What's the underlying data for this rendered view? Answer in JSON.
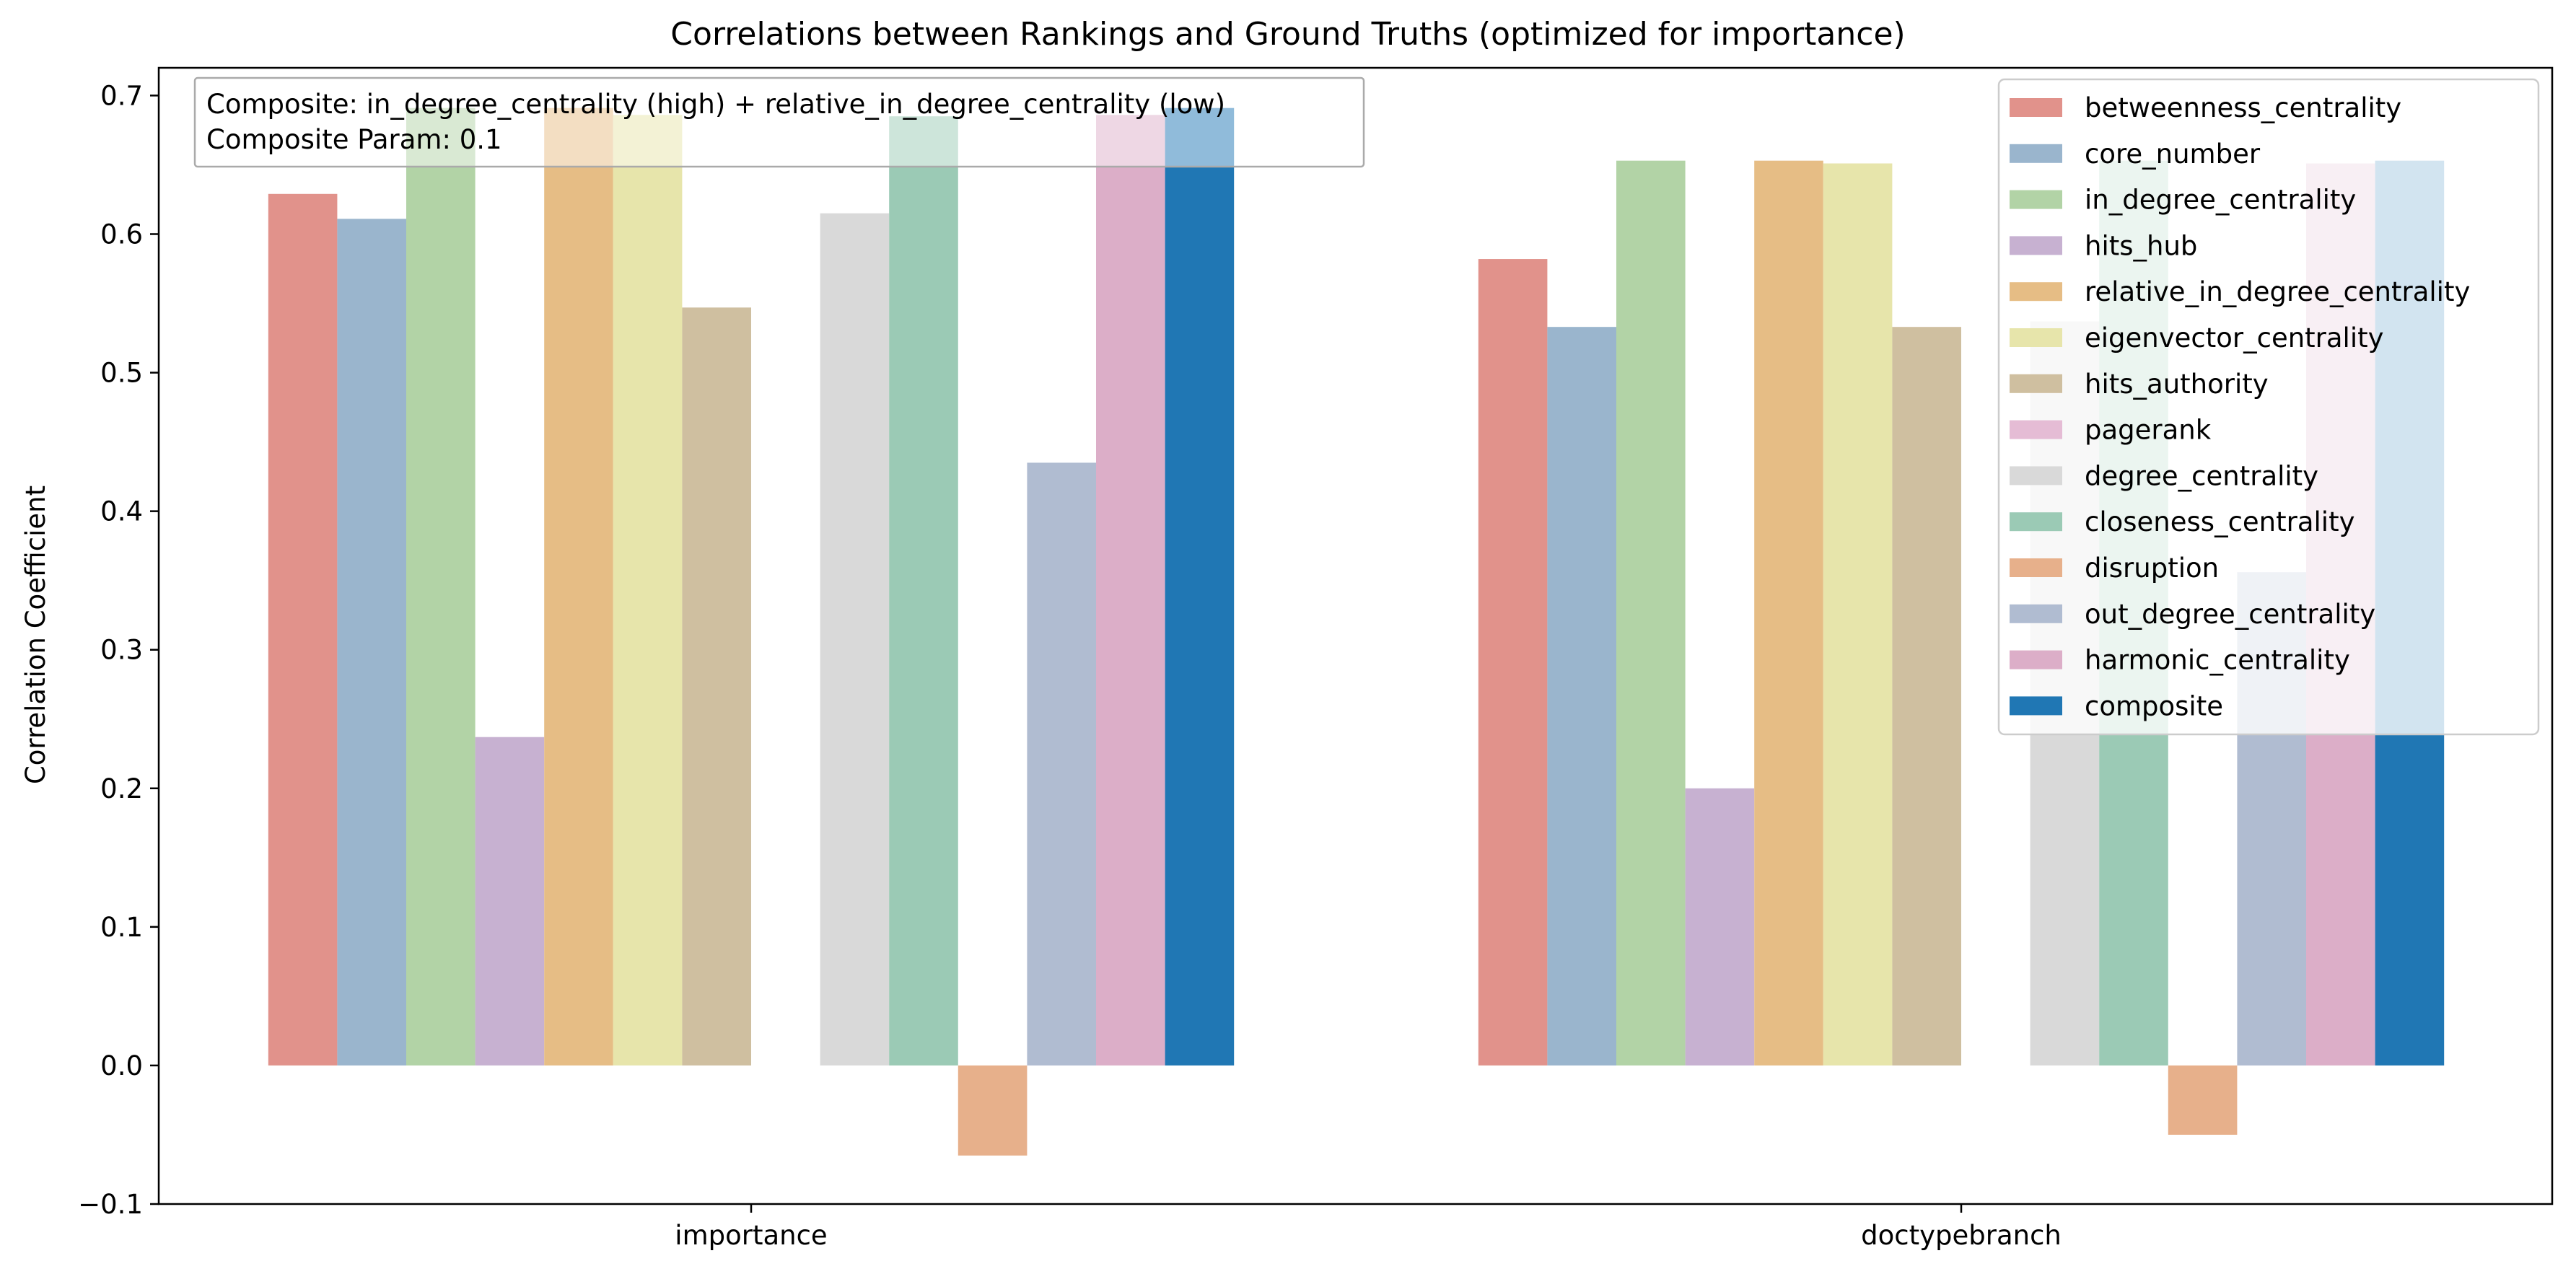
{
  "chart_data": {
    "type": "bar",
    "title": "Correlations between Rankings and Ground Truths (optimized for importance)",
    "xlabel": "",
    "ylabel": "Correlation Coefficient",
    "ylim": [
      -0.1,
      0.72
    ],
    "yticks": [
      "-0.1",
      "0.0",
      "0.1",
      "0.2",
      "0.3",
      "0.4",
      "0.5",
      "0.6",
      "0.7"
    ],
    "grid": false,
    "legend_position": "top-right",
    "categories": [
      "importance",
      "doctypebranch"
    ],
    "series": [
      {
        "name": "betweenness_centrality",
        "color": "#e1928b",
        "values": [
          0.629,
          0.582
        ]
      },
      {
        "name": "core_number",
        "color": "#9ab5cd",
        "values": [
          0.611,
          0.533
        ]
      },
      {
        "name": "in_degree_centrality",
        "color": "#b2d3a6",
        "values": [
          0.691,
          0.653
        ]
      },
      {
        "name": "hits_hub",
        "color": "#c7b1d1",
        "values": [
          0.237,
          0.2
        ]
      },
      {
        "name": "relative_in_degree_centrality",
        "color": "#e6bd85",
        "values": [
          0.691,
          0.653
        ]
      },
      {
        "name": "eigenvector_centrality",
        "color": "#e7e5ab",
        "values": [
          0.686,
          0.651
        ]
      },
      {
        "name": "hits_authority",
        "color": "#cfbfa0",
        "values": [
          0.547,
          0.533
        ]
      },
      {
        "name": "pagerank",
        "color": "#e5bcd5",
        "values": [
          null,
          null
        ]
      },
      {
        "name": "degree_centrality",
        "color": "#d9d9d9",
        "values": [
          0.615,
          0.537
        ]
      },
      {
        "name": "closeness_centrality",
        "color": "#9bcab5",
        "values": [
          0.685,
          0.653
        ]
      },
      {
        "name": "disruption",
        "color": "#e7b08b",
        "values": [
          -0.065,
          -0.05
        ]
      },
      {
        "name": "out_degree_centrality",
        "color": "#b0bcd1",
        "values": [
          0.435,
          0.356
        ]
      },
      {
        "name": "harmonic_centrality",
        "color": "#dcaec8",
        "values": [
          0.686,
          0.651
        ]
      },
      {
        "name": "composite",
        "color": "#2077b4",
        "values": [
          0.691,
          0.653
        ]
      }
    ],
    "annotation": {
      "line1": "Composite: in_degree_centrality (high) + relative_in_degree_centrality (low)",
      "line2": "Composite Param: 0.1"
    }
  }
}
